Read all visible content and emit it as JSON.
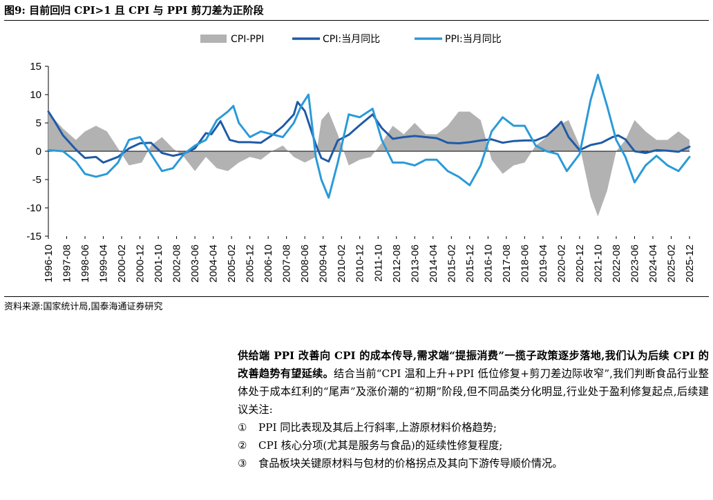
{
  "figure": {
    "title": "图9:  目前回归 CPI>1 且 CPI 与 PPI 剪刀差为正阶段",
    "source": "资料来源:国家统计局,国泰海通证券研究"
  },
  "chart_data": {
    "type": "line",
    "title": "",
    "xlabel": "",
    "ylabel": "",
    "ylim": [
      -15,
      15
    ],
    "yticks": [
      -15,
      -10,
      -5,
      0,
      5,
      10,
      15
    ],
    "x_tick_labels": [
      "1996-10",
      "1997-08",
      "1998-06",
      "1999-04",
      "2000-02",
      "2000-12",
      "2001-10",
      "2002-08",
      "2003-06",
      "2004-04",
      "2005-02",
      "2005-12",
      "2006-10",
      "2007-08",
      "2008-06",
      "2009-04",
      "2010-02",
      "2010-12",
      "2011-10",
      "2012-08",
      "2013-06",
      "2014-04",
      "2015-02",
      "2015-12",
      "2016-10",
      "2017-08",
      "2018-06",
      "2019-04",
      "2020-02",
      "2020-12",
      "2021-10",
      "2022-08",
      "2023-06",
      "2024-04",
      "2025-02",
      "2025-12"
    ],
    "legend_position": "top-center",
    "grid": false,
    "series": [
      {
        "name": "CPI-PPI",
        "style": "area",
        "color": "#b2b2b2",
        "x": [
          "1996-10",
          "1997-06",
          "1998-01",
          "1998-06",
          "1998-12",
          "1999-06",
          "1999-12",
          "2000-06",
          "2001-01",
          "2001-06",
          "2001-12",
          "2002-06",
          "2002-12",
          "2003-06",
          "2003-12",
          "2004-06",
          "2004-12",
          "2005-06",
          "2005-12",
          "2006-06",
          "2006-12",
          "2007-06",
          "2007-12",
          "2008-06",
          "2008-12",
          "2009-03",
          "2009-07",
          "2009-12",
          "2010-06",
          "2010-12",
          "2011-06",
          "2011-12",
          "2012-06",
          "2012-12",
          "2013-06",
          "2013-12",
          "2014-06",
          "2014-12",
          "2015-06",
          "2015-12",
          "2016-06",
          "2016-12",
          "2017-06",
          "2017-12",
          "2018-06",
          "2018-12",
          "2019-06",
          "2019-12",
          "2020-06",
          "2020-12",
          "2021-06",
          "2021-10",
          "2022-03",
          "2022-08",
          "2023-01",
          "2023-06",
          "2023-12",
          "2024-06",
          "2024-12",
          "2025-06",
          "2025-12"
        ],
        "values": [
          6.8,
          4.0,
          2.0,
          3.5,
          4.5,
          3.5,
          0.5,
          -2.5,
          -2.0,
          1.0,
          2.5,
          0.5,
          -1.0,
          -3.5,
          -1.0,
          -3.0,
          -3.5,
          -2.0,
          -1.0,
          -1.5,
          0.0,
          1.0,
          -1.0,
          -2.0,
          -1.0,
          5.5,
          7.0,
          3.0,
          -2.5,
          -1.5,
          -1.0,
          1.5,
          4.5,
          3.0,
          5.0,
          3.0,
          3.0,
          4.5,
          7.0,
          7.0,
          5.5,
          -1.5,
          -4.0,
          -2.5,
          -2.0,
          1.0,
          2.5,
          4.5,
          5.5,
          1.0,
          -8.0,
          -11.5,
          -7.0,
          0.0,
          2.0,
          5.5,
          3.5,
          2.0,
          2.0,
          3.5,
          2.0
        ]
      },
      {
        "name": "CPI:当月同比",
        "style": "line",
        "color": "#1f5aa6",
        "x": [
          "1996-10",
          "1997-01",
          "1997-06",
          "1998-01",
          "1998-06",
          "1998-12",
          "1999-04",
          "1999-12",
          "2000-06",
          "2000-12",
          "2001-06",
          "2001-12",
          "2002-06",
          "2002-12",
          "2003-06",
          "2003-12",
          "2004-03",
          "2004-08",
          "2005-01",
          "2005-06",
          "2005-12",
          "2006-06",
          "2006-12",
          "2007-06",
          "2007-12",
          "2008-02",
          "2008-06",
          "2008-12",
          "2009-03",
          "2009-07",
          "2009-12",
          "2010-06",
          "2010-12",
          "2011-07",
          "2011-12",
          "2012-06",
          "2012-12",
          "2013-06",
          "2013-12",
          "2014-06",
          "2014-12",
          "2015-06",
          "2015-12",
          "2016-06",
          "2016-12",
          "2017-06",
          "2017-12",
          "2018-06",
          "2018-12",
          "2019-06",
          "2019-12",
          "2020-02",
          "2020-06",
          "2020-12",
          "2021-06",
          "2021-12",
          "2022-06",
          "2022-09",
          "2023-01",
          "2023-06",
          "2023-12",
          "2024-06",
          "2024-12",
          "2025-06",
          "2025-12"
        ],
        "values": [
          7.0,
          5.5,
          2.8,
          0.3,
          -1.2,
          -1.0,
          -2.0,
          -1.0,
          0.5,
          1.4,
          1.5,
          -0.3,
          -0.8,
          -0.4,
          0.5,
          3.2,
          3.0,
          5.3,
          2.0,
          1.6,
          1.6,
          1.5,
          2.8,
          4.4,
          6.5,
          8.7,
          7.1,
          1.2,
          -1.2,
          -1.8,
          1.9,
          2.9,
          4.6,
          6.5,
          4.1,
          2.2,
          2.5,
          2.7,
          2.5,
          2.3,
          1.5,
          1.4,
          1.6,
          1.9,
          2.1,
          1.5,
          1.8,
          1.9,
          1.9,
          2.7,
          4.5,
          5.2,
          2.5,
          0.2,
          1.1,
          1.5,
          2.5,
          2.8,
          2.1,
          0.0,
          -0.3,
          0.2,
          0.1,
          -0.1,
          0.8
        ]
      },
      {
        "name": "PPI:当月同比",
        "style": "line",
        "color": "#2a9ad8",
        "x": [
          "1996-10",
          "1997-06",
          "1998-01",
          "1998-06",
          "1998-12",
          "1999-06",
          "1999-12",
          "2000-06",
          "2000-12",
          "2001-06",
          "2001-12",
          "2002-06",
          "2002-12",
          "2003-06",
          "2003-12",
          "2004-06",
          "2004-12",
          "2005-03",
          "2005-06",
          "2005-12",
          "2006-06",
          "2006-12",
          "2007-06",
          "2007-12",
          "2008-04",
          "2008-08",
          "2008-12",
          "2009-03",
          "2009-07",
          "2009-12",
          "2010-06",
          "2010-12",
          "2011-07",
          "2011-12",
          "2012-06",
          "2012-12",
          "2013-06",
          "2013-12",
          "2014-06",
          "2014-12",
          "2015-06",
          "2015-12",
          "2016-06",
          "2016-12",
          "2017-06",
          "2017-12",
          "2018-06",
          "2018-12",
          "2019-06",
          "2019-12",
          "2020-05",
          "2020-12",
          "2021-06",
          "2021-10",
          "2022-03",
          "2022-08",
          "2023-01",
          "2023-06",
          "2023-12",
          "2024-06",
          "2024-12",
          "2025-06",
          "2025-12"
        ],
        "values": [
          0.2,
          0.0,
          -1.8,
          -4.0,
          -4.5,
          -4.0,
          -2.0,
          2.0,
          2.5,
          -0.5,
          -3.5,
          -3.0,
          -0.5,
          1.0,
          2.0,
          5.5,
          7.0,
          8.0,
          5.0,
          2.5,
          3.5,
          3.0,
          2.5,
          5.0,
          8.0,
          10.0,
          -1.0,
          -5.0,
          -8.2,
          -2.0,
          6.5,
          6.0,
          7.5,
          2.0,
          -2.0,
          -2.0,
          -2.5,
          -1.5,
          -1.5,
          -3.5,
          -4.5,
          -6.0,
          -2.5,
          3.5,
          6.0,
          4.5,
          4.5,
          1.0,
          0.0,
          -0.5,
          -3.5,
          -0.5,
          9.0,
          13.5,
          8.0,
          2.0,
          -1.0,
          -5.5,
          -2.5,
          -0.8,
          -2.5,
          -3.5,
          -1.0
        ]
      }
    ]
  },
  "body": {
    "lead": "供给端 PPI 改善向 CPI 的成本传导,需求端“提振消费”一揽子政策逐步落地,我们认为后续 CPI 的改善趋势有望延续。",
    "text": "结合当前“CPI 温和上升+PPI 低位修复+剪刀差边际收窄”,我们判断食品行业整体处于成本红利的“尾声”及涨价潮的“初期”阶段,但不同品类分化明显,行业处于盈利修复起点,后续建议关注:",
    "items": [
      {
        "num": "①",
        "text": "PPI 同比表现及其后上行斜率,上游原材料价格趋势;"
      },
      {
        "num": "②",
        "text": "CPI 核心分项(尤其是服务与食品)的延续性修复程度;"
      },
      {
        "num": "③",
        "text": "食品板块关键原材料与包材的价格拐点及其向下游传导顺价情况。"
      }
    ]
  }
}
